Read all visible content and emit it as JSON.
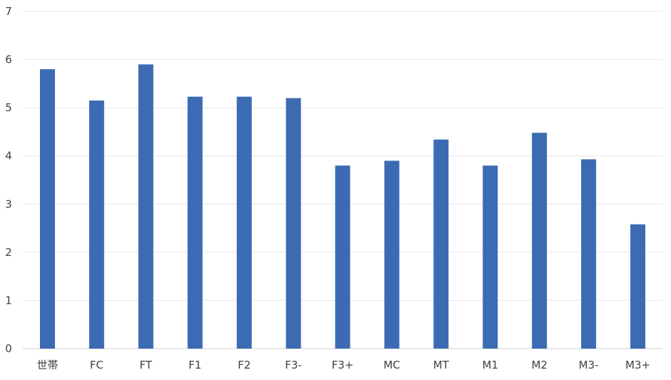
{
  "chart_data": {
    "type": "bar",
    "title": "",
    "xlabel": "",
    "ylabel": "",
    "categories": [
      "世帯",
      "FC",
      "FT",
      "F1",
      "F2",
      "F3-",
      "F3+",
      "MC",
      "MT",
      "M1",
      "M2",
      "M3-",
      "M3+"
    ],
    "values": [
      5.8,
      5.15,
      5.9,
      5.23,
      5.23,
      5.2,
      3.8,
      3.9,
      4.34,
      3.8,
      4.48,
      3.93,
      2.58
    ],
    "ylim": [
      0,
      7
    ],
    "yticks": [
      "0",
      "1",
      "2",
      "3",
      "4",
      "5",
      "6",
      "7"
    ],
    "grid": true,
    "legend": "none",
    "bar_color": "#3d6bb3"
  }
}
